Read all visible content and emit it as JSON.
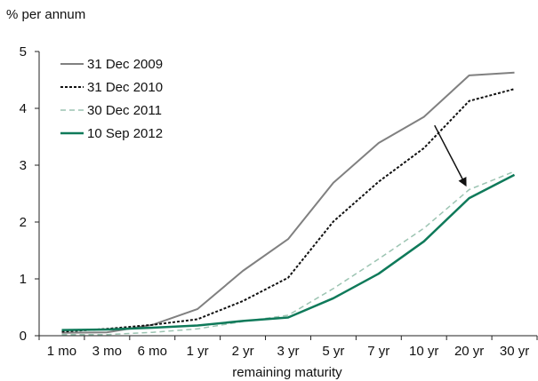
{
  "chart_data": {
    "type": "line",
    "title": "",
    "ylabel": "% per annum",
    "xlabel": "remaining maturity",
    "categories": [
      "1 mo",
      "3 mo",
      "6 mo",
      "1 yr",
      "2 yr",
      "3 yr",
      "5 yr",
      "7 yr",
      "10 yr",
      "20 yr",
      "30 yr"
    ],
    "ylim": [
      0,
      5
    ],
    "yticks": [
      0,
      1,
      2,
      3,
      4,
      5
    ],
    "grid": false,
    "legend_position": "top-left",
    "series": [
      {
        "name": "31 Dec 2009",
        "color": "#808080",
        "style": "solid",
        "values": [
          0.05,
          0.06,
          0.19,
          0.47,
          1.14,
          1.7,
          2.69,
          3.39,
          3.85,
          4.58,
          4.63
        ]
      },
      {
        "name": "31 Dec 2010",
        "color": "#111111",
        "style": "dotted",
        "values": [
          0.07,
          0.12,
          0.19,
          0.29,
          0.61,
          1.02,
          2.01,
          2.71,
          3.3,
          4.13,
          4.34
        ]
      },
      {
        "name": "30 Dec 2011",
        "color": "#9cc4b2",
        "style": "dashed",
        "values": [
          0.02,
          0.02,
          0.06,
          0.12,
          0.25,
          0.36,
          0.83,
          1.35,
          1.89,
          2.57,
          2.89
        ]
      },
      {
        "name": "10 Sep 2012",
        "color": "#0f7a5a",
        "style": "solid",
        "values": [
          0.1,
          0.11,
          0.14,
          0.18,
          0.26,
          0.32,
          0.66,
          1.09,
          1.66,
          2.42,
          2.83
        ]
      }
    ],
    "annotation": {
      "type": "arrow",
      "from": {
        "category": "10 yr",
        "value": 3.7
      },
      "to": {
        "category": "20 yr",
        "value": 2.65
      }
    }
  }
}
